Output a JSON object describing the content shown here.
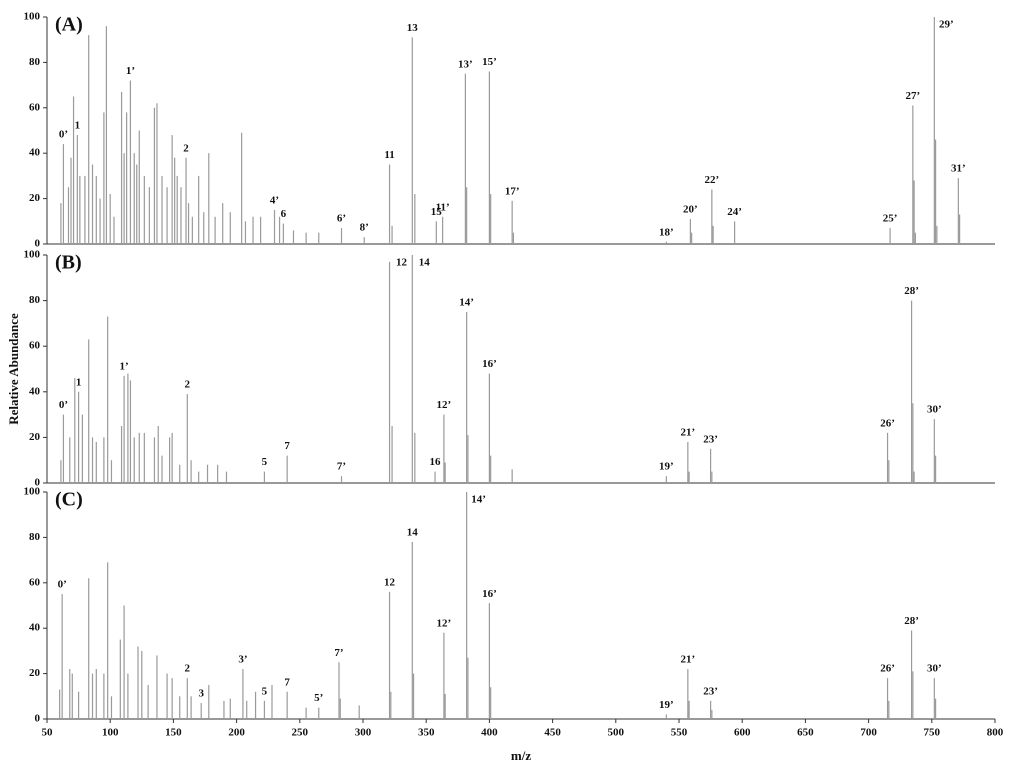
{
  "chart_data": [
    {
      "type": "spectrum",
      "panel_label": "(A)",
      "color": "#9a9a9a",
      "xlim": [
        50,
        800
      ],
      "ylim": [
        0,
        100
      ],
      "yticks": [
        0,
        20,
        40,
        60,
        80,
        100
      ],
      "x": [
        61,
        63,
        67,
        69,
        71,
        74,
        76,
        80,
        83,
        86,
        89,
        92,
        95,
        97,
        100,
        103,
        109,
        111,
        113,
        116,
        119,
        121,
        123,
        127,
        131,
        135,
        137,
        141,
        145,
        149,
        151,
        153,
        156,
        160,
        162,
        165,
        170,
        174,
        178,
        183,
        189,
        195,
        204,
        207,
        213,
        219,
        230,
        234,
        237,
        245,
        255,
        265,
        283,
        301,
        321,
        323,
        339,
        341,
        358,
        363,
        381,
        382,
        400,
        401,
        418,
        419,
        540,
        559,
        560,
        576,
        577,
        594,
        717,
        735,
        736,
        737,
        752,
        753,
        754,
        771,
        772
      ],
      "values": [
        18,
        44,
        25,
        38,
        65,
        48,
        30,
        30,
        92,
        35,
        30,
        20,
        58,
        96,
        22,
        12,
        67,
        40,
        58,
        72,
        40,
        35,
        50,
        30,
        25,
        60,
        62,
        30,
        25,
        48,
        38,
        30,
        25,
        38,
        18,
        12,
        30,
        14,
        40,
        12,
        18,
        14,
        49,
        10,
        12,
        12,
        15,
        12,
        9,
        6,
        5,
        5,
        7,
        3,
        35,
        8,
        91,
        22,
        10,
        12,
        75,
        25,
        76,
        22,
        19,
        5,
        1,
        11,
        5,
        24,
        8,
        10,
        7,
        61,
        28,
        5,
        100,
        46,
        8,
        29,
        13
      ],
      "peak_labels": [
        null,
        "0’",
        null,
        null,
        null,
        "1",
        null,
        null,
        null,
        null,
        null,
        null,
        null,
        null,
        null,
        null,
        null,
        null,
        null,
        "1’",
        null,
        null,
        null,
        null,
        null,
        null,
        null,
        null,
        null,
        null,
        null,
        null,
        null,
        "2",
        null,
        null,
        null,
        null,
        null,
        null,
        null,
        null,
        null,
        null,
        null,
        null,
        "4’",
        null,
        "6",
        null,
        null,
        null,
        "6’",
        "8’",
        "11",
        null,
        "13",
        null,
        "15",
        "11’",
        "13’",
        null,
        "15’",
        null,
        "17’",
        null,
        "18’",
        "20’",
        null,
        "22’",
        null,
        "24’",
        "25’",
        "27’",
        null,
        null,
        "29’",
        null,
        null,
        "31’",
        null
      ]
    },
    {
      "type": "spectrum",
      "panel_label": "(B)",
      "ylabel": "Relative Abundance",
      "color": "#9a9a9a",
      "xlim": [
        50,
        800
      ],
      "ylim": [
        0,
        100
      ],
      "yticks": [
        0,
        20,
        40,
        60,
        80,
        100
      ],
      "x": [
        61,
        63,
        68,
        72,
        75,
        78,
        83,
        86,
        89,
        95,
        98,
        101,
        109,
        111,
        114,
        116,
        119,
        123,
        127,
        135,
        138,
        141,
        147,
        149,
        155,
        161,
        164,
        170,
        177,
        185,
        192,
        222,
        240,
        283,
        321,
        323,
        339,
        341,
        357,
        364,
        365,
        382,
        383,
        400,
        401,
        418,
        540,
        557,
        558,
        575,
        576,
        715,
        716,
        734,
        735,
        736,
        752,
        753
      ],
      "values": [
        10,
        30,
        20,
        46,
        40,
        30,
        63,
        20,
        18,
        20,
        73,
        10,
        25,
        47,
        48,
        45,
        20,
        22,
        22,
        20,
        25,
        12,
        20,
        22,
        8,
        39,
        10,
        5,
        8,
        8,
        5,
        5,
        12,
        3,
        97,
        25,
        100,
        22,
        5,
        30,
        9,
        75,
        21,
        48,
        12,
        6,
        3,
        18,
        5,
        15,
        5,
        22,
        10,
        80,
        35,
        5,
        28,
        12
      ],
      "peak_labels": [
        null,
        "0’",
        null,
        null,
        "1",
        null,
        null,
        null,
        null,
        null,
        null,
        null,
        null,
        "1’",
        null,
        null,
        null,
        null,
        null,
        null,
        null,
        null,
        null,
        null,
        null,
        "2",
        null,
        null,
        null,
        null,
        null,
        "5",
        "7",
        "7’",
        "12",
        null,
        "14",
        null,
        "16",
        "12’",
        null,
        "14’",
        null,
        "16’",
        null,
        null,
        "19’",
        "21’",
        null,
        "23’",
        null,
        "26’",
        null,
        "28’",
        null,
        null,
        "30’",
        null
      ]
    },
    {
      "type": "spectrum",
      "panel_label": "(C)",
      "xlabel": "m/z",
      "color": "#9a9a9a",
      "xlim": [
        50,
        800
      ],
      "ylim": [
        0,
        100
      ],
      "yticks": [
        0,
        20,
        40,
        60,
        80,
        100
      ],
      "xticks": [
        50,
        100,
        150,
        200,
        250,
        300,
        350,
        400,
        450,
        500,
        550,
        600,
        650,
        700,
        750,
        800
      ],
      "x": [
        60,
        62,
        68,
        70,
        75,
        83,
        86,
        89,
        95,
        98,
        101,
        108,
        111,
        114,
        122,
        125,
        130,
        137,
        145,
        149,
        155,
        161,
        164,
        172,
        178,
        190,
        195,
        205,
        208,
        215,
        222,
        228,
        240,
        255,
        265,
        281,
        282,
        297,
        321,
        322,
        339,
        340,
        364,
        365,
        382,
        383,
        400,
        401,
        540,
        557,
        558,
        575,
        576,
        715,
        716,
        734,
        735,
        752,
        753
      ],
      "values": [
        13,
        55,
        22,
        20,
        12,
        62,
        20,
        22,
        20,
        69,
        10,
        35,
        50,
        20,
        32,
        30,
        15,
        28,
        20,
        18,
        10,
        18,
        10,
        7,
        15,
        8,
        9,
        22,
        8,
        12,
        8,
        15,
        12,
        5,
        5,
        25,
        9,
        6,
        56,
        12,
        78,
        20,
        38,
        11,
        100,
        27,
        51,
        14,
        2,
        22,
        8,
        8,
        4,
        18,
        8,
        39,
        21,
        18,
        9
      ],
      "peak_labels": [
        null,
        "0’",
        null,
        null,
        null,
        null,
        null,
        null,
        null,
        null,
        null,
        null,
        null,
        null,
        null,
        null,
        null,
        null,
        null,
        null,
        null,
        "2",
        null,
        "3",
        null,
        null,
        null,
        "3’",
        null,
        null,
        "5",
        null,
        "7",
        null,
        "5’",
        "7’",
        null,
        null,
        "12",
        null,
        "14",
        null,
        "12’",
        null,
        "14’",
        null,
        "16’",
        null,
        "19’",
        "21’",
        null,
        "23’",
        null,
        "26’",
        null,
        "28’",
        null,
        "30’",
        null
      ]
    }
  ]
}
